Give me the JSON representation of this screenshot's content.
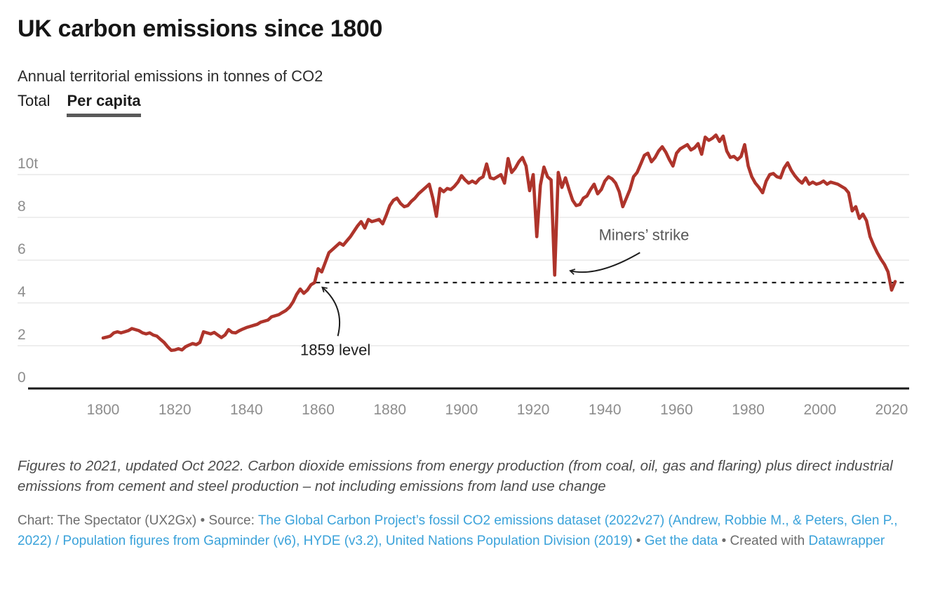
{
  "header": {
    "title": "UK carbon emissions since 1800",
    "subtitle": "Annual territorial emissions in tonnes of CO2",
    "tabs": [
      {
        "label": "Total",
        "active": false
      },
      {
        "label": "Per capita",
        "active": true
      }
    ]
  },
  "chart_data": {
    "type": "line",
    "title": "UK carbon emissions since 1800",
    "subtitle": "Annual territorial emissions in tonnes of CO2",
    "unit": "tonnes of CO2 per person",
    "active_series": "Per capita",
    "xlim": [
      1800,
      2021
    ],
    "ylim": [
      0,
      12
    ],
    "grid": "horizontal-only",
    "legend": "none",
    "x_ticks": [
      1800,
      1820,
      1840,
      1860,
      1880,
      1900,
      1920,
      1940,
      1960,
      1980,
      2000,
      2020
    ],
    "y_ticks": [
      {
        "v": 0,
        "label": "0"
      },
      {
        "v": 2,
        "label": "2"
      },
      {
        "v": 4,
        "label": "4"
      },
      {
        "v": 6,
        "label": "6"
      },
      {
        "v": 8,
        "label": "8"
      },
      {
        "v": 10,
        "label": "10t"
      }
    ],
    "colors": {
      "line": "#ae342b",
      "grid": "#e3e3e3",
      "axis": "#1a1a1a",
      "tick_label": "#8d8d8d",
      "reference": "#1d1d1d",
      "link": "#3aa2da"
    },
    "reference_line": {
      "value": 4.95,
      "from_x": 1859,
      "label": "1859 level",
      "style": "dashed"
    },
    "annotations": [
      {
        "id": "level-1859",
        "text": "1859 level",
        "x": 1855,
        "y": 1.55,
        "color": "#1d1d1d",
        "arrow": {
          "from": [
            1865.5,
            2.45
          ],
          "ctrl": [
            1867.5,
            3.8
          ],
          "to": [
            1861.2,
            4.72
          ]
        }
      },
      {
        "id": "miners-strike",
        "text": "Miners’ strike",
        "x": 1938.3,
        "y": 6.93,
        "color": "#575757",
        "arrow": {
          "from": [
            1949.8,
            6.35
          ],
          "ctrl": [
            1938.0,
            5.2
          ],
          "to": [
            1930.4,
            5.5
          ]
        }
      }
    ],
    "series": [
      {
        "name": "Per capita",
        "color": "#ae342b",
        "points": [
          [
            1800,
            2.36
          ],
          [
            1801,
            2.4
          ],
          [
            1802,
            2.45
          ],
          [
            1803,
            2.6
          ],
          [
            1804,
            2.65
          ],
          [
            1805,
            2.6
          ],
          [
            1806,
            2.65
          ],
          [
            1807,
            2.7
          ],
          [
            1808,
            2.8
          ],
          [
            1809,
            2.75
          ],
          [
            1810,
            2.7
          ],
          [
            1811,
            2.6
          ],
          [
            1812,
            2.55
          ],
          [
            1813,
            2.6
          ],
          [
            1814,
            2.5
          ],
          [
            1815,
            2.45
          ],
          [
            1816,
            2.3
          ],
          [
            1817,
            2.15
          ],
          [
            1818,
            1.95
          ],
          [
            1819,
            1.78
          ],
          [
            1820,
            1.8
          ],
          [
            1821,
            1.86
          ],
          [
            1822,
            1.8
          ],
          [
            1823,
            1.95
          ],
          [
            1824,
            2.03
          ],
          [
            1825,
            2.1
          ],
          [
            1826,
            2.05
          ],
          [
            1827,
            2.15
          ],
          [
            1828,
            2.65
          ],
          [
            1829,
            2.6
          ],
          [
            1830,
            2.55
          ],
          [
            1831,
            2.62
          ],
          [
            1832,
            2.5
          ],
          [
            1833,
            2.38
          ],
          [
            1834,
            2.5
          ],
          [
            1835,
            2.75
          ],
          [
            1836,
            2.62
          ],
          [
            1837,
            2.6
          ],
          [
            1838,
            2.7
          ],
          [
            1839,
            2.78
          ],
          [
            1840,
            2.85
          ],
          [
            1841,
            2.9
          ],
          [
            1842,
            2.95
          ],
          [
            1843,
            3.0
          ],
          [
            1844,
            3.1
          ],
          [
            1845,
            3.15
          ],
          [
            1846,
            3.2
          ],
          [
            1847,
            3.35
          ],
          [
            1848,
            3.4
          ],
          [
            1849,
            3.45
          ],
          [
            1850,
            3.55
          ],
          [
            1851,
            3.65
          ],
          [
            1852,
            3.8
          ],
          [
            1853,
            4.05
          ],
          [
            1854,
            4.4
          ],
          [
            1855,
            4.65
          ],
          [
            1856,
            4.45
          ],
          [
            1857,
            4.6
          ],
          [
            1858,
            4.85
          ],
          [
            1859,
            4.95
          ],
          [
            1860,
            5.6
          ],
          [
            1861,
            5.45
          ],
          [
            1862,
            5.9
          ],
          [
            1863,
            6.35
          ],
          [
            1864,
            6.5
          ],
          [
            1865,
            6.65
          ],
          [
            1866,
            6.8
          ],
          [
            1867,
            6.7
          ],
          [
            1868,
            6.9
          ],
          [
            1869,
            7.1
          ],
          [
            1870,
            7.35
          ],
          [
            1871,
            7.6
          ],
          [
            1872,
            7.8
          ],
          [
            1873,
            7.5
          ],
          [
            1874,
            7.9
          ],
          [
            1875,
            7.8
          ],
          [
            1876,
            7.85
          ],
          [
            1877,
            7.9
          ],
          [
            1878,
            7.7
          ],
          [
            1879,
            8.1
          ],
          [
            1880,
            8.55
          ],
          [
            1881,
            8.8
          ],
          [
            1882,
            8.9
          ],
          [
            1883,
            8.65
          ],
          [
            1884,
            8.5
          ],
          [
            1885,
            8.55
          ],
          [
            1886,
            8.75
          ],
          [
            1887,
            8.9
          ],
          [
            1888,
            9.1
          ],
          [
            1889,
            9.25
          ],
          [
            1890,
            9.4
          ],
          [
            1891,
            9.55
          ],
          [
            1892,
            8.9
          ],
          [
            1893,
            8.05
          ],
          [
            1894,
            9.35
          ],
          [
            1895,
            9.2
          ],
          [
            1896,
            9.35
          ],
          [
            1897,
            9.3
          ],
          [
            1898,
            9.45
          ],
          [
            1899,
            9.65
          ],
          [
            1900,
            9.95
          ],
          [
            1901,
            9.75
          ],
          [
            1902,
            9.6
          ],
          [
            1903,
            9.7
          ],
          [
            1904,
            9.6
          ],
          [
            1905,
            9.8
          ],
          [
            1906,
            9.9
          ],
          [
            1907,
            10.5
          ],
          [
            1908,
            9.85
          ],
          [
            1909,
            9.8
          ],
          [
            1910,
            9.9
          ],
          [
            1911,
            10.0
          ],
          [
            1912,
            9.6
          ],
          [
            1913,
            10.75
          ],
          [
            1914,
            10.1
          ],
          [
            1915,
            10.3
          ],
          [
            1916,
            10.6
          ],
          [
            1917,
            10.8
          ],
          [
            1918,
            10.4
          ],
          [
            1919,
            9.25
          ],
          [
            1920,
            10.0
          ],
          [
            1921,
            7.1
          ],
          [
            1922,
            9.5
          ],
          [
            1923,
            10.35
          ],
          [
            1924,
            9.9
          ],
          [
            1925,
            9.75
          ],
          [
            1926,
            5.3
          ],
          [
            1927,
            10.1
          ],
          [
            1928,
            9.4
          ],
          [
            1929,
            9.85
          ],
          [
            1930,
            9.3
          ],
          [
            1931,
            8.8
          ],
          [
            1932,
            8.55
          ],
          [
            1933,
            8.6
          ],
          [
            1934,
            8.9
          ],
          [
            1935,
            9.0
          ],
          [
            1936,
            9.3
          ],
          [
            1937,
            9.55
          ],
          [
            1938,
            9.1
          ],
          [
            1939,
            9.3
          ],
          [
            1940,
            9.7
          ],
          [
            1941,
            9.9
          ],
          [
            1942,
            9.8
          ],
          [
            1943,
            9.6
          ],
          [
            1944,
            9.2
          ],
          [
            1945,
            8.5
          ],
          [
            1946,
            8.9
          ],
          [
            1947,
            9.3
          ],
          [
            1948,
            9.9
          ],
          [
            1949,
            10.1
          ],
          [
            1950,
            10.5
          ],
          [
            1951,
            10.9
          ],
          [
            1952,
            11.0
          ],
          [
            1953,
            10.6
          ],
          [
            1954,
            10.8
          ],
          [
            1955,
            11.1
          ],
          [
            1956,
            11.3
          ],
          [
            1957,
            11.05
          ],
          [
            1958,
            10.7
          ],
          [
            1959,
            10.4
          ],
          [
            1960,
            11.0
          ],
          [
            1961,
            11.2
          ],
          [
            1962,
            11.3
          ],
          [
            1963,
            11.4
          ],
          [
            1964,
            11.15
          ],
          [
            1965,
            11.25
          ],
          [
            1966,
            11.45
          ],
          [
            1967,
            10.95
          ],
          [
            1968,
            11.75
          ],
          [
            1969,
            11.6
          ],
          [
            1970,
            11.7
          ],
          [
            1971,
            11.85
          ],
          [
            1972,
            11.55
          ],
          [
            1973,
            11.8
          ],
          [
            1974,
            11.1
          ],
          [
            1975,
            10.8
          ],
          [
            1976,
            10.85
          ],
          [
            1977,
            10.7
          ],
          [
            1978,
            10.85
          ],
          [
            1979,
            11.4
          ],
          [
            1980,
            10.4
          ],
          [
            1981,
            9.9
          ],
          [
            1982,
            9.6
          ],
          [
            1983,
            9.4
          ],
          [
            1984,
            9.15
          ],
          [
            1985,
            9.7
          ],
          [
            1986,
            10.0
          ],
          [
            1987,
            10.05
          ],
          [
            1988,
            9.9
          ],
          [
            1989,
            9.85
          ],
          [
            1990,
            10.3
          ],
          [
            1991,
            10.55
          ],
          [
            1992,
            10.2
          ],
          [
            1993,
            9.95
          ],
          [
            1994,
            9.75
          ],
          [
            1995,
            9.6
          ],
          [
            1996,
            9.85
          ],
          [
            1997,
            9.55
          ],
          [
            1998,
            9.65
          ],
          [
            1999,
            9.55
          ],
          [
            2000,
            9.6
          ],
          [
            2001,
            9.7
          ],
          [
            2002,
            9.55
          ],
          [
            2003,
            9.65
          ],
          [
            2004,
            9.6
          ],
          [
            2005,
            9.55
          ],
          [
            2006,
            9.45
          ],
          [
            2007,
            9.35
          ],
          [
            2008,
            9.15
          ],
          [
            2009,
            8.3
          ],
          [
            2010,
            8.5
          ],
          [
            2011,
            7.95
          ],
          [
            2012,
            8.15
          ],
          [
            2013,
            7.85
          ],
          [
            2014,
            7.1
          ],
          [
            2015,
            6.7
          ],
          [
            2016,
            6.35
          ],
          [
            2017,
            6.05
          ],
          [
            2018,
            5.8
          ],
          [
            2019,
            5.45
          ],
          [
            2020,
            4.6
          ],
          [
            2021,
            5.0
          ]
        ]
      }
    ]
  },
  "footnote": "Figures to 2021, updated Oct 2022. Carbon dioxide emissions from energy production (from coal, oil, gas and flaring) plus direct industrial emissions from cement and steel production – not including emissions from land use change",
  "byline": {
    "prefix": "Chart: The Spectator (UX2Gx) • Source: ",
    "source_link": "The Global Carbon Project’s fossil CO2 emissions dataset (2022v27) (Andrew, Robbie M., & Peters, Glen P., 2022) / Population figures from Gapminder (v6), HYDE (v3.2), United Nations Population Division (2019)",
    "sep1": " • ",
    "get_data_link": "Get the data",
    "sep2": " • Created with ",
    "tool_link": "Datawrapper"
  }
}
